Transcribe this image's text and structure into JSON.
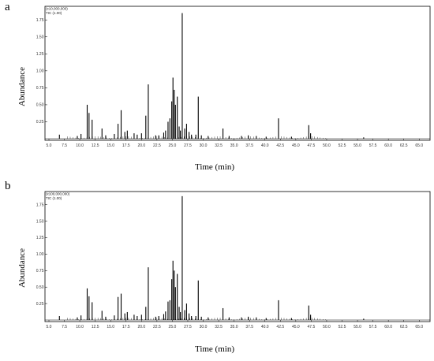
{
  "chart_data": [
    {
      "panel": "a",
      "type": "line",
      "multiplier_label": "(x10,000,000)",
      "trace_label": "TIC (1.00)",
      "xlabel": "Time (min)",
      "ylabel": "Abundance",
      "xlim": [
        5.0,
        66.5
      ],
      "ylim": [
        0,
        1.95
      ],
      "x_ticks": [
        5.0,
        7.5,
        10.0,
        12.5,
        15.0,
        17.5,
        20.0,
        22.5,
        25.0,
        27.5,
        30.0,
        32.5,
        35.0,
        37.5,
        40.0,
        42.5,
        45.0,
        47.5,
        50.0,
        52.5,
        55.0,
        57.5,
        60.0,
        62.5,
        65.0
      ],
      "y_ticks": [
        0.25,
        0.5,
        0.75,
        1.0,
        1.25,
        1.5,
        1.75
      ],
      "peaks": [
        [
          6.7,
          0.06
        ],
        [
          9.6,
          0.04
        ],
        [
          10.2,
          0.07
        ],
        [
          11.2,
          0.5
        ],
        [
          11.5,
          0.38
        ],
        [
          12.0,
          0.28
        ],
        [
          13.6,
          0.15
        ],
        [
          14.2,
          0.05
        ],
        [
          15.6,
          0.07
        ],
        [
          16.2,
          0.22
        ],
        [
          16.7,
          0.42
        ],
        [
          17.3,
          0.1
        ],
        [
          17.7,
          0.12
        ],
        [
          18.8,
          0.08
        ],
        [
          19.3,
          0.06
        ],
        [
          20.0,
          0.08
        ],
        [
          20.7,
          0.34
        ],
        [
          21.1,
          0.8
        ],
        [
          22.3,
          0.05
        ],
        [
          22.8,
          0.05
        ],
        [
          23.6,
          0.09
        ],
        [
          23.9,
          0.12
        ],
        [
          24.3,
          0.25
        ],
        [
          24.6,
          0.3
        ],
        [
          24.9,
          0.55
        ],
        [
          25.1,
          0.9
        ],
        [
          25.3,
          0.72
        ],
        [
          25.5,
          0.5
        ],
        [
          25.8,
          0.62
        ],
        [
          26.1,
          0.18
        ],
        [
          26.3,
          0.12
        ],
        [
          26.6,
          1.85
        ],
        [
          27.0,
          0.15
        ],
        [
          27.3,
          0.22
        ],
        [
          27.7,
          0.1
        ],
        [
          28.1,
          0.06
        ],
        [
          28.8,
          0.06
        ],
        [
          29.2,
          0.62
        ],
        [
          29.7,
          0.05
        ],
        [
          30.8,
          0.04
        ],
        [
          33.2,
          0.15
        ],
        [
          34.2,
          0.04
        ],
        [
          36.2,
          0.04
        ],
        [
          37.3,
          0.05
        ],
        [
          38.6,
          0.04
        ],
        [
          40.2,
          0.03
        ],
        [
          42.2,
          0.3
        ],
        [
          44.3,
          0.03
        ],
        [
          47.1,
          0.2
        ],
        [
          47.4,
          0.08
        ],
        [
          56.0,
          0.02
        ]
      ]
    },
    {
      "panel": "b",
      "type": "line",
      "multiplier_label": "(x100,000,000)",
      "trace_label": "TIC (1.00)",
      "xlabel": "Time (min)",
      "ylabel": "Abundance",
      "xlim": [
        5.0,
        66.5
      ],
      "ylim": [
        0,
        1.95
      ],
      "x_ticks": [
        5.0,
        7.5,
        10.0,
        12.5,
        15.0,
        17.5,
        20.0,
        22.5,
        25.0,
        27.5,
        30.0,
        32.5,
        35.0,
        37.5,
        40.0,
        42.5,
        45.0,
        47.5,
        50.0,
        52.5,
        55.0,
        57.5,
        60.0,
        62.5,
        65.0
      ],
      "y_ticks": [
        0.25,
        0.5,
        0.75,
        1.0,
        1.25,
        1.5,
        1.75
      ],
      "peaks": [
        [
          6.7,
          0.06
        ],
        [
          9.6,
          0.04
        ],
        [
          10.2,
          0.07
        ],
        [
          11.2,
          0.48
        ],
        [
          11.5,
          0.36
        ],
        [
          12.0,
          0.27
        ],
        [
          13.6,
          0.14
        ],
        [
          14.2,
          0.05
        ],
        [
          15.6,
          0.07
        ],
        [
          16.2,
          0.35
        ],
        [
          16.7,
          0.4
        ],
        [
          17.3,
          0.1
        ],
        [
          17.7,
          0.12
        ],
        [
          18.8,
          0.08
        ],
        [
          19.3,
          0.06
        ],
        [
          20.0,
          0.08
        ],
        [
          20.7,
          0.2
        ],
        [
          21.1,
          0.8
        ],
        [
          22.3,
          0.05
        ],
        [
          22.8,
          0.06
        ],
        [
          23.6,
          0.09
        ],
        [
          23.9,
          0.13
        ],
        [
          24.3,
          0.28
        ],
        [
          24.6,
          0.3
        ],
        [
          24.9,
          0.62
        ],
        [
          25.1,
          0.9
        ],
        [
          25.3,
          0.75
        ],
        [
          25.5,
          0.5
        ],
        [
          25.8,
          0.7
        ],
        [
          26.1,
          0.2
        ],
        [
          26.3,
          0.12
        ],
        [
          26.6,
          1.88
        ],
        [
          27.0,
          0.15
        ],
        [
          27.3,
          0.25
        ],
        [
          27.7,
          0.1
        ],
        [
          28.1,
          0.06
        ],
        [
          28.8,
          0.06
        ],
        [
          29.2,
          0.6
        ],
        [
          29.7,
          0.05
        ],
        [
          30.8,
          0.04
        ],
        [
          33.2,
          0.18
        ],
        [
          34.2,
          0.04
        ],
        [
          36.2,
          0.04
        ],
        [
          37.3,
          0.05
        ],
        [
          38.6,
          0.04
        ],
        [
          40.2,
          0.03
        ],
        [
          42.2,
          0.3
        ],
        [
          44.3,
          0.03
        ],
        [
          47.1,
          0.22
        ],
        [
          47.4,
          0.08
        ],
        [
          56.0,
          0.02
        ]
      ]
    }
  ]
}
